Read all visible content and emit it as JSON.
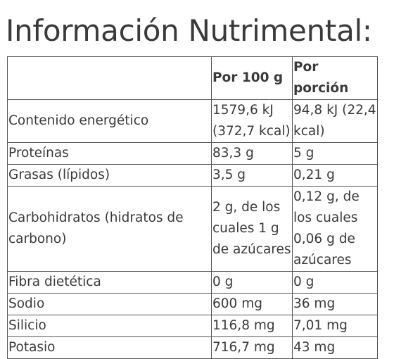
{
  "title": "Información Nutrimental:",
  "table": {
    "header": [
      "",
      "Por 100 g",
      "Por porción"
    ],
    "rows": [
      {
        "label": "Contenido energético",
        "per100": "1579,6 kJ (372,7 kcal)",
        "portion": "94,8 kJ (22,4 kcal)"
      },
      {
        "label": "Proteínas",
        "per100": "83,3 g",
        "portion": "5 g"
      },
      {
        "label": "Grasas (lípidos)",
        "per100": "3,5 g",
        "portion": "0,21 g"
      },
      {
        "label": "Carbohidratos (hidratos de carbono)",
        "per100": "2 g, de los cuales 1 g de azúcares",
        "portion": "0,12 g, de los cuales 0,06 g de azúcares"
      },
      {
        "label": "Fibra dietética",
        "per100": "0 g",
        "portion": "0 g"
      },
      {
        "label": "Sodio",
        "per100": "600 mg",
        "portion": "36 mg"
      },
      {
        "label": "Silicio",
        "per100": "116,8 mg",
        "portion": "7,01 mg"
      },
      {
        "label": "Potasio",
        "per100": "716,7 mg",
        "portion": "43 mg"
      }
    ]
  }
}
